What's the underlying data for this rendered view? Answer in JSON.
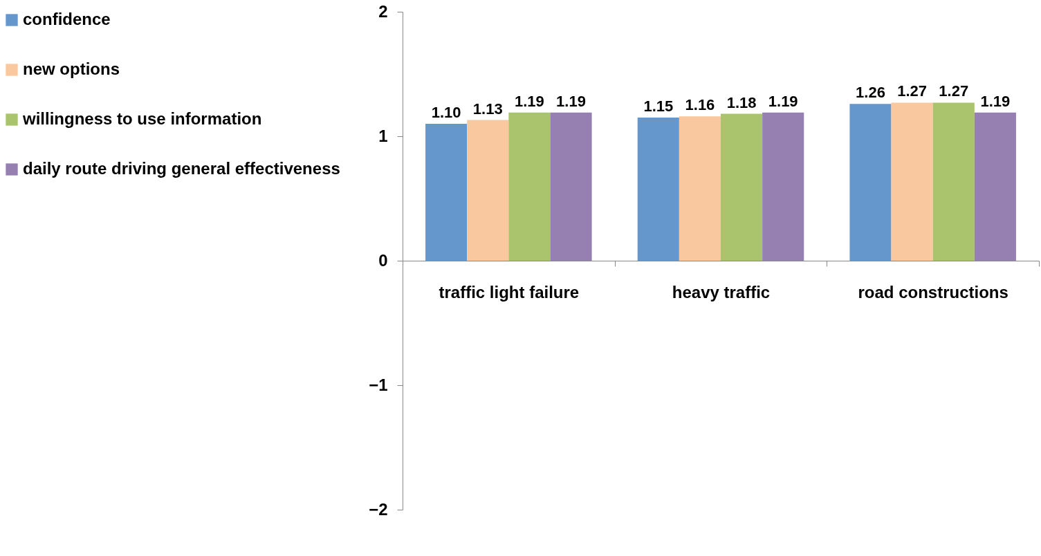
{
  "chart_data": {
    "type": "bar",
    "categories": [
      "traffic light failure",
      "heavy traffic",
      "road constructions"
    ],
    "series": [
      {
        "name": "confidence",
        "color": "#6597cd",
        "values": [
          1.1,
          1.15,
          1.26
        ],
        "value_labels": [
          "1.10",
          "1.15",
          "1.26"
        ]
      },
      {
        "name": "new options",
        "color": "#fac89e",
        "values": [
          1.13,
          1.16,
          1.27
        ],
        "value_labels": [
          "1.13",
          "1.16",
          "1.27"
        ]
      },
      {
        "name": "willingness to use information",
        "color": "#a9c46c",
        "values": [
          1.19,
          1.18,
          1.27
        ],
        "value_labels": [
          "1.19",
          "1.18",
          "1.27"
        ]
      },
      {
        "name": "daily route driving general effectiveness",
        "color": "#9580b1",
        "values": [
          1.19,
          1.19,
          1.19
        ],
        "value_labels": [
          "1.19",
          "1.19",
          "1.19"
        ]
      }
    ],
    "ylim": [
      -2,
      2
    ],
    "yticks": [
      -2,
      -1,
      0,
      1,
      2
    ],
    "grid": false,
    "legend": "left"
  }
}
